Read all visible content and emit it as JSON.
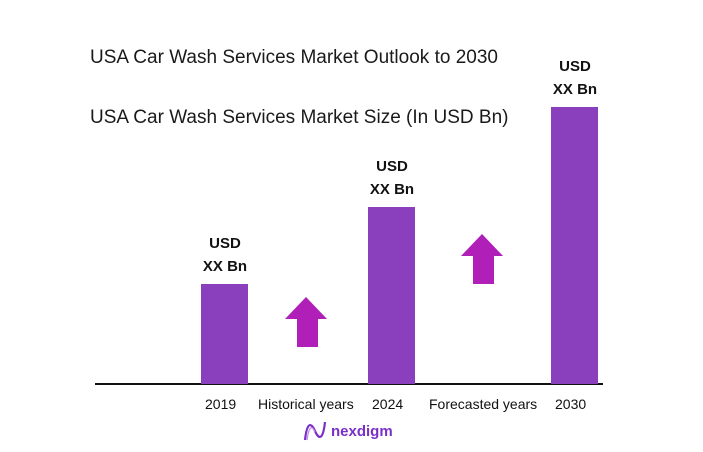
{
  "chart_data": {
    "type": "bar",
    "title": "USA Car Wash Services Market Outlook to 2030",
    "subtitle": "USA Car Wash Services Market Size (In USD Bn)",
    "categories": [
      "2019",
      "2024",
      "2030"
    ],
    "data_labels": [
      [
        "USD",
        "XX Bn"
      ],
      [
        "USD",
        "XX Bn"
      ],
      [
        "USD",
        "XX Bn"
      ]
    ],
    "values_relative": [
      1.0,
      1.77,
      2.77
    ],
    "period_labels": [
      "Historical years",
      "Forecasted years"
    ],
    "bar_color": "#8a40bc",
    "arrow_color": "#b01fb8",
    "grid": false
  },
  "logo": {
    "text": "nexdigm"
  }
}
